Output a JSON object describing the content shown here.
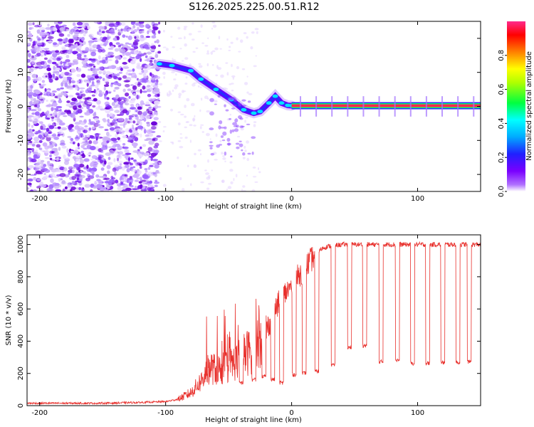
{
  "figure": {
    "title": "S126.2025.225.00.51.R12"
  },
  "chart_data": [
    {
      "type": "heatmap",
      "name": "spectrogram",
      "title": "",
      "xlabel": "Height of straight line (km)",
      "ylabel": "Frequency (Hz)",
      "xlim": [
        -210,
        150
      ],
      "ylim": [
        -25,
        25
      ],
      "xticks": [
        -200,
        -100,
        0,
        100
      ],
      "yticks": [
        -20,
        -10,
        0,
        10,
        20
      ],
      "colorbar": {
        "label": "Normalized spectral amplitude",
        "range": [
          0,
          1
        ],
        "ticks": [
          0.0,
          0.2,
          0.4,
          0.6,
          0.8
        ],
        "colors": [
          "#ffffff",
          "#8a00ff",
          "#2020ff",
          "#00c8ff",
          "#00ff60",
          "#ffff00",
          "#ff8000",
          "#ff0000",
          "#ff2a8c"
        ]
      },
      "regions": [
        {
          "label": "noise",
          "x_range": [
            -210,
            -105
          ],
          "f_range": [
            -25,
            25
          ],
          "amplitude": 0.1
        },
        {
          "label": "signal track",
          "points": [
            [
              -105,
              12.5
            ],
            [
              -95,
              12
            ],
            [
              -80,
              10.5
            ],
            [
              -72,
              8
            ],
            [
              -60,
              5
            ],
            [
              -48,
              2
            ],
            [
              -38,
              -1
            ],
            [
              -30,
              -2
            ],
            [
              -25,
              -1.5
            ],
            [
              -18,
              1
            ],
            [
              -13,
              3
            ],
            [
              -8,
              1
            ],
            [
              -3,
              0.3
            ],
            [
              0,
              0.2
            ],
            [
              150,
              0.2
            ]
          ],
          "amplitude_before_0": 0.3,
          "amplitude_after_0": 0.9
        }
      ]
    },
    {
      "type": "line",
      "name": "snr",
      "title": "",
      "xlabel": "Height of straight line (km)",
      "ylabel": "SNR (10 * v/v)",
      "xlim": [
        -210,
        150
      ],
      "ylim": [
        0,
        1060
      ],
      "xticks": [
        -200,
        -100,
        0,
        100
      ],
      "yticks": [
        0,
        200,
        400,
        600,
        800,
        1000
      ],
      "color": "#e8302c",
      "series": [
        {
          "name": "SNR",
          "x": [
            -210,
            -180,
            -150,
            -120,
            -100,
            -90,
            -80,
            -70,
            -65,
            -60,
            -55,
            -50,
            -45,
            -40,
            -35,
            -30,
            -25,
            -20,
            -15,
            -10,
            -5,
            0,
            5,
            10,
            15,
            20,
            25,
            30,
            40,
            50,
            60,
            70,
            80,
            90,
            100,
            110,
            120,
            130,
            140,
            150
          ],
          "values": [
            15,
            15,
            15,
            20,
            25,
            40,
            80,
            170,
            240,
            220,
            230,
            250,
            270,
            300,
            330,
            360,
            420,
            470,
            560,
            640,
            700,
            740,
            800,
            850,
            900,
            950,
            980,
            990,
            1000,
            1000,
            1000,
            1000,
            1000,
            1000,
            1000,
            1000,
            1000,
            1000,
            1000,
            1000
          ]
        }
      ],
      "dropouts": [
        {
          "x": -40,
          "low": 130
        },
        {
          "x": -30,
          "low": 150
        },
        {
          "x": -22,
          "low": 170
        },
        {
          "x": -15,
          "low": 150
        },
        {
          "x": -8,
          "low": 130
        },
        {
          "x": 2,
          "low": 180
        },
        {
          "x": 10,
          "low": 190
        },
        {
          "x": 20,
          "low": 200
        },
        {
          "x": 33,
          "low": 240
        },
        {
          "x": 46,
          "low": 350
        },
        {
          "x": 58,
          "low": 360
        },
        {
          "x": 71,
          "low": 260
        },
        {
          "x": 84,
          "low": 270
        },
        {
          "x": 96,
          "low": 250
        },
        {
          "x": 108,
          "low": 250
        },
        {
          "x": 120,
          "low": 255
        },
        {
          "x": 132,
          "low": 255
        },
        {
          "x": 141,
          "low": 260
        }
      ]
    }
  ]
}
